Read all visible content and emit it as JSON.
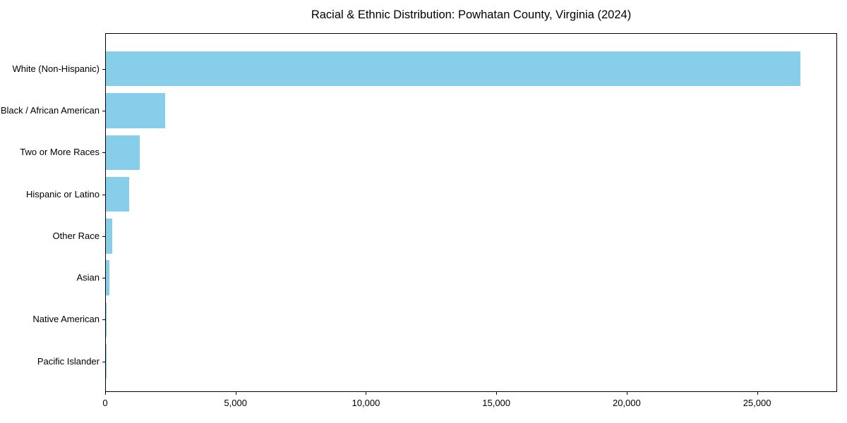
{
  "title": "Racial & Ethnic Distribution: Powhatan County, Virginia (2024)",
  "colors": {
    "bar": "#87CEEB",
    "spine": "#000000",
    "text": "#000000",
    "background": "#FFFFFF"
  },
  "chart_data": {
    "type": "bar",
    "orientation": "horizontal",
    "title": "Racial & Ethnic Distribution: Powhatan County, Virginia (2024)",
    "xlabel": "",
    "ylabel": "",
    "categories": [
      "White (Non-Hispanic)",
      "Black / African American",
      "Two or More Races",
      "Hispanic or Latino",
      "Other Race",
      "Asian",
      "Native American",
      "Pacific Islander"
    ],
    "values": [
      26700,
      2270,
      1290,
      890,
      240,
      125,
      35,
      10
    ],
    "xlim": [
      0,
      28070
    ],
    "xticks": [
      0,
      5000,
      10000,
      15000,
      20000,
      25000
    ],
    "xtick_labels": [
      "0",
      "5,000",
      "10,000",
      "15,000",
      "20,000",
      "25,000"
    ],
    "bar_color": "#87CEEB",
    "grid": false,
    "legend": null
  }
}
